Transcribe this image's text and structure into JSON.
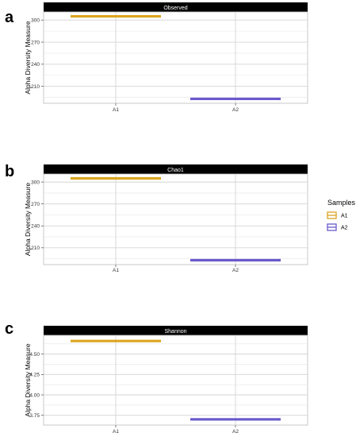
{
  "chart_data": [
    {
      "type": "bar",
      "panel_letter": "a",
      "facet": "Observed",
      "ylabel": "Alpha Diversity Measure",
      "xlabel": "",
      "categories": [
        "A1",
        "A2"
      ],
      "values": [
        305,
        193
      ],
      "ylim": [
        187,
        311
      ],
      "yticks": [
        210,
        240,
        270,
        300
      ],
      "grid": true
    },
    {
      "type": "bar",
      "panel_letter": "b",
      "facet": "Chao1",
      "ylabel": "Alpha Diversity Measure",
      "xlabel": "",
      "categories": [
        "A1",
        "A2"
      ],
      "values": [
        305,
        193
      ],
      "ylim": [
        187,
        311
      ],
      "yticks": [
        210,
        240,
        270,
        300
      ],
      "grid": true
    },
    {
      "type": "bar",
      "panel_letter": "c",
      "facet": "Shannon",
      "ylabel": "Alpha Diversity Measure",
      "xlabel": "",
      "categories": [
        "A1",
        "A2"
      ],
      "values": [
        4.66,
        3.7
      ],
      "ylim": [
        3.63,
        4.73
      ],
      "yticks": [
        3.75,
        4.0,
        4.25,
        4.5
      ],
      "ytick_labels": [
        "3.75",
        "4.00",
        "4.25",
        "4.50"
      ],
      "grid": true
    }
  ],
  "legend": {
    "title": "Samples",
    "placement": "right",
    "items": [
      {
        "label": "A1",
        "color": "#DAA520"
      },
      {
        "label": "A2",
        "color": "#6A5ACD"
      }
    ]
  },
  "colors": {
    "A1": "#DAA520",
    "A2": "#6A5ACD",
    "strip": "#000000",
    "grid": "#d4d4d4"
  }
}
